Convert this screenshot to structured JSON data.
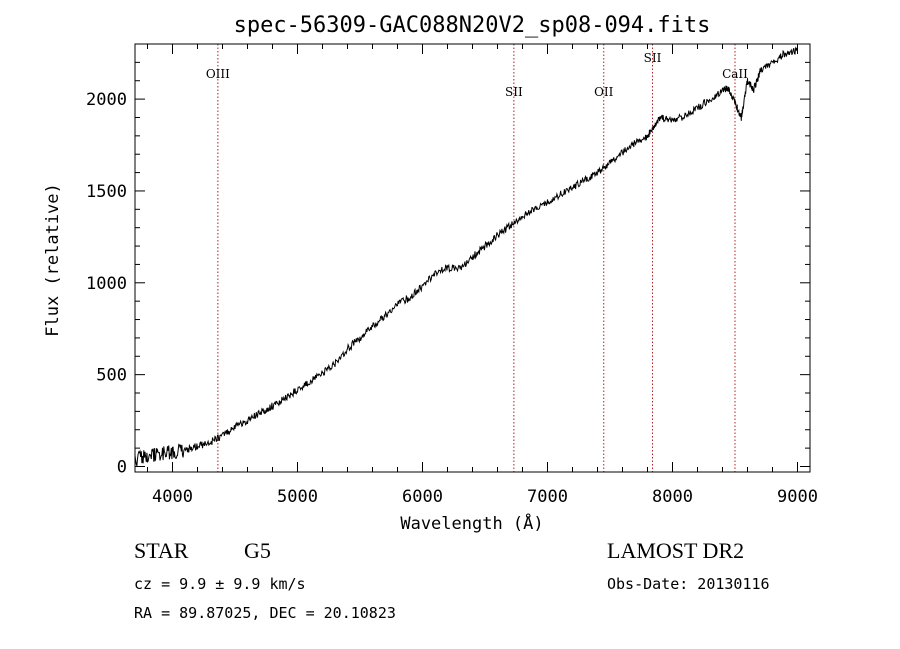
{
  "chart_data": {
    "type": "line",
    "title": "spec-56309-GAC088N20V2_sp08-094.fits",
    "xlabel": "Wavelength (Å)",
    "ylabel": "Flux (relative)",
    "xlim": [
      3700,
      9100
    ],
    "ylim": [
      -30,
      2300
    ],
    "x_ticks": [
      4000,
      5000,
      6000,
      7000,
      8000,
      9000
    ],
    "y_ticks": [
      0,
      500,
      1000,
      1500,
      2000
    ],
    "grid": false,
    "series": [
      {
        "x": [
          3700,
          3800,
          3900,
          4000,
          4100,
          4200,
          4300,
          4400,
          4500,
          4600,
          4700,
          4800,
          4900,
          5000,
          5100,
          5200,
          5300,
          5400,
          5500,
          5600,
          5700,
          5800,
          5900,
          6000,
          6100,
          6200,
          6300,
          6400,
          6500,
          6600,
          6700,
          6800,
          6900,
          7000,
          7100,
          7200,
          7300,
          7400,
          7500,
          7600,
          7700,
          7800,
          7850,
          7900,
          8000,
          8100,
          8200,
          8300,
          8400,
          8450,
          8500,
          8550,
          8600,
          8650,
          8700,
          8800,
          8900,
          9000
        ],
        "y": [
          40,
          60,
          65,
          80,
          90,
          110,
          130,
          170,
          215,
          250,
          290,
          330,
          370,
          420,
          460,
          510,
          560,
          640,
          700,
          760,
          820,
          880,
          920,
          980,
          1050,
          1080,
          1080,
          1140,
          1200,
          1260,
          1310,
          1360,
          1410,
          1440,
          1480,
          1520,
          1560,
          1600,
          1650,
          1710,
          1760,
          1800,
          1850,
          1900,
          1880,
          1910,
          1950,
          2000,
          2050,
          2060,
          1980,
          1900,
          2100,
          2050,
          2150,
          2200,
          2250,
          2260
        ]
      }
    ],
    "line_markers": [
      {
        "label": "OIII",
        "x": 4363
      },
      {
        "label": "SII",
        "x": 6731
      },
      {
        "label": "OII",
        "x": 7450
      },
      {
        "label": "SII",
        "x": 7840
      },
      {
        "label": "CaII",
        "x": 8500
      }
    ]
  },
  "info": {
    "obj_class": "STAR",
    "obj_subclass": "G5",
    "survey": "LAMOST DR2",
    "cz": "cz = 9.9 ± 9.9 km/s",
    "obs_date": "Obs-Date: 20130116",
    "radec": "RA =  89.87025, DEC =  20.10823"
  }
}
